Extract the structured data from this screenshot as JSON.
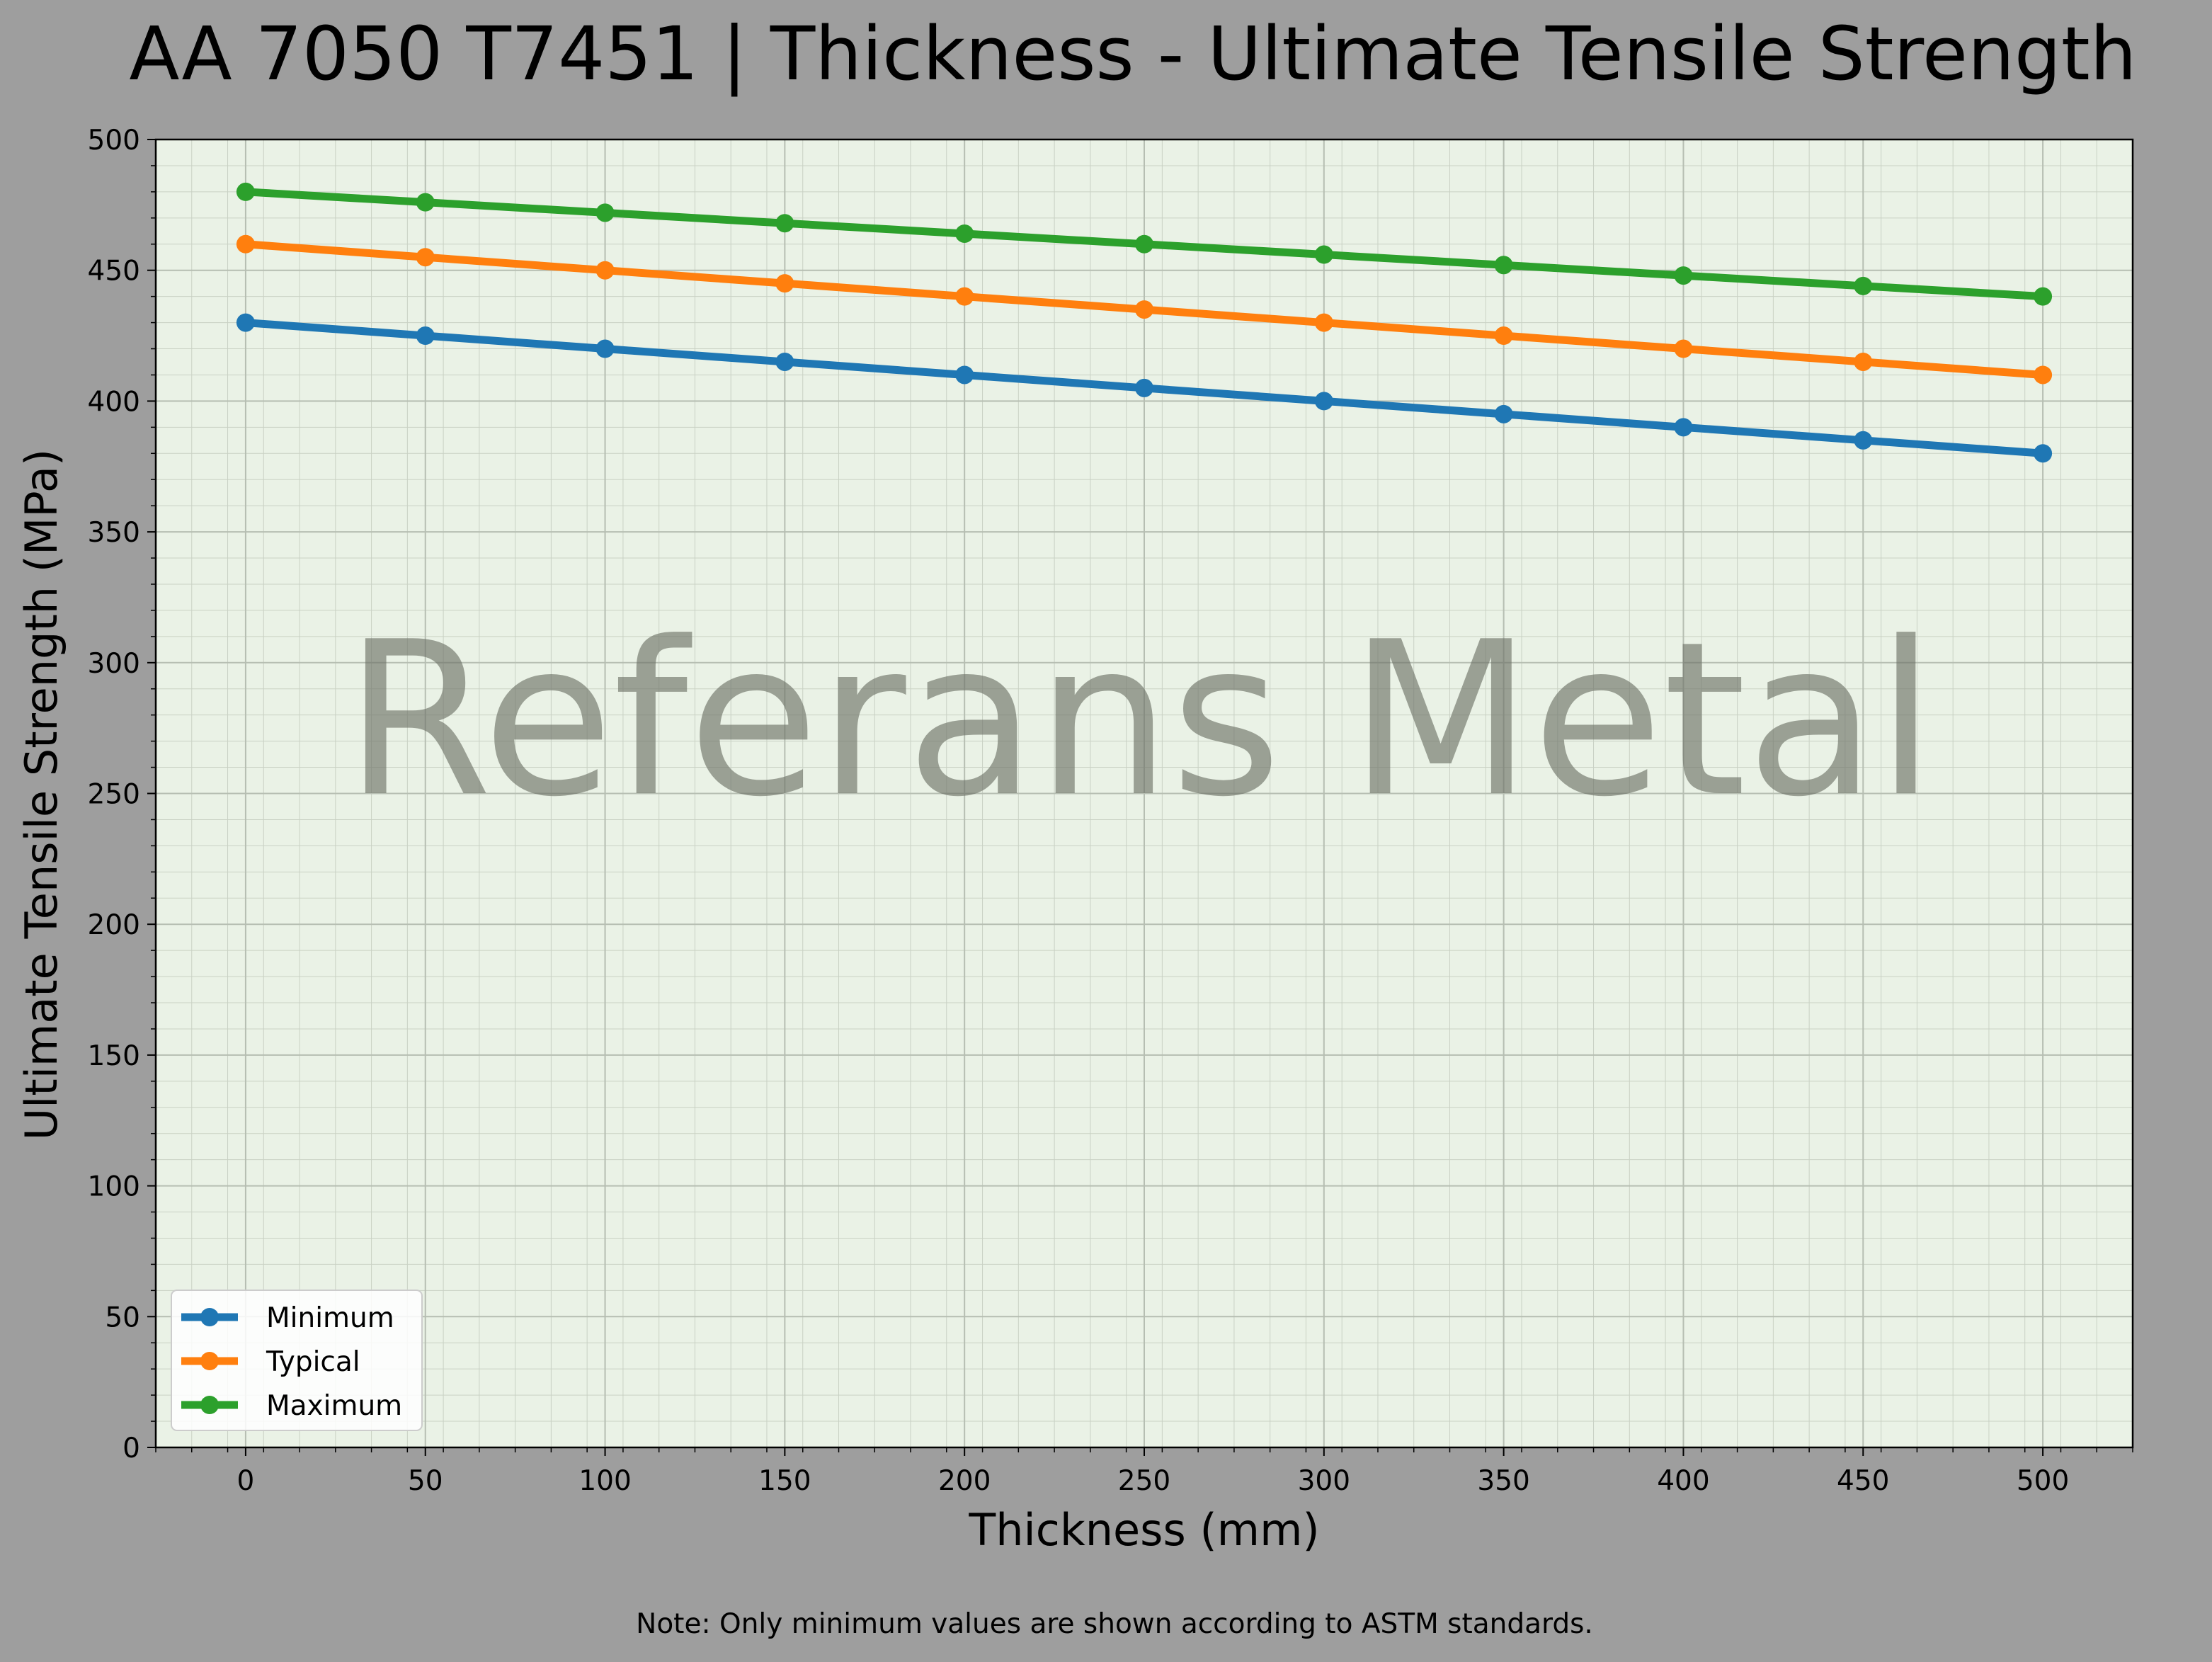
{
  "chart_data": {
    "type": "line",
    "title": "AA 7050 T7451 | Thickness - Ultimate Tensile Strength",
    "xlabel": "Thickness (mm)",
    "ylabel": "Ultimate Tensile Strength (MPa)",
    "x": [
      0,
      50,
      100,
      150,
      200,
      250,
      300,
      350,
      400,
      450,
      500
    ],
    "xticks": [
      "0",
      "50",
      "100",
      "150",
      "200",
      "250",
      "300",
      "350",
      "400",
      "450",
      "500"
    ],
    "yticks": [
      "0",
      "50",
      "100",
      "150",
      "200",
      "250",
      "300",
      "350",
      "400",
      "450",
      "500"
    ],
    "xlim": [
      -25,
      525
    ],
    "ylim": [
      0,
      500
    ],
    "grid": true,
    "legend_position": "bottom-left",
    "series": [
      {
        "name": "Minimum",
        "color": "#1f77b4",
        "values": [
          430,
          425,
          420,
          415,
          410,
          405,
          400,
          395,
          390,
          385,
          380
        ]
      },
      {
        "name": "Typical",
        "color": "#ff7f0e",
        "values": [
          460,
          455,
          450,
          445,
          440,
          435,
          430,
          425,
          420,
          415,
          410
        ]
      },
      {
        "name": "Maximum",
        "color": "#2ca02c",
        "values": [
          480,
          476,
          472,
          468,
          464,
          460,
          456,
          452,
          448,
          444,
          440
        ]
      }
    ],
    "watermark": "Referans Metal",
    "note": "Note: Only minimum values are shown according to ASTM standards."
  },
  "colors": {
    "page_background": "#9e9e9e",
    "plot_background": "#eaf2e6"
  }
}
